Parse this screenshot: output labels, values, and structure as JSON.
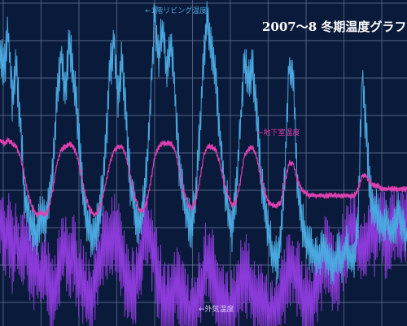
{
  "chart_data": {
    "type": "line",
    "title": "2007～8 冬期温度グラフ",
    "grid": true,
    "xlabel": "",
    "ylabel": "",
    "annotations": [
      {
        "text": "←1階リビング温度",
        "series": "living"
      },
      {
        "text": "←地下室温度",
        "series": "basement"
      },
      {
        "text": "←外気温度",
        "series": "outdoor"
      }
    ],
    "series": [
      {
        "key": "living",
        "color": "#4aa8e0",
        "values": [
          0.86,
          0.78,
          0.9,
          0.7,
          0.8,
          0.62,
          0.4,
          0.34,
          0.3,
          0.28,
          0.35,
          0.32,
          0.38,
          0.48,
          0.7,
          0.84,
          0.72,
          0.86,
          0.78,
          0.64,
          0.46,
          0.34,
          0.3,
          0.26,
          0.32,
          0.4,
          0.56,
          0.78,
          0.88,
          0.7,
          0.82,
          0.64,
          0.44,
          0.36,
          0.3,
          0.34,
          0.48,
          0.7,
          0.96,
          0.82,
          0.92,
          0.76,
          0.88,
          0.72,
          0.5,
          0.4,
          0.34,
          0.3,
          0.38,
          0.58,
          0.8,
          0.96,
          0.84,
          0.74,
          0.6,
          0.44,
          0.36,
          0.3,
          0.4,
          0.6,
          0.82,
          0.74,
          0.8,
          0.66,
          0.48,
          0.38,
          0.28,
          0.22,
          0.2,
          0.26,
          0.48,
          0.8,
          0.76,
          0.46,
          0.32,
          0.28,
          0.24,
          0.22,
          0.2,
          0.24,
          0.22,
          0.2,
          0.18,
          0.22,
          0.2,
          0.24,
          0.22,
          0.2,
          0.34,
          0.78,
          0.58,
          0.4,
          0.36,
          0.34,
          0.3,
          0.32,
          0.28,
          0.3,
          0.36,
          0.3,
          0.26
        ]
      },
      {
        "key": "basement",
        "color": "#e040b0",
        "values": [
          0.57,
          0.56,
          0.57,
          0.56,
          0.55,
          0.52,
          0.46,
          0.4,
          0.36,
          0.34,
          0.35,
          0.34,
          0.36,
          0.42,
          0.5,
          0.54,
          0.55,
          0.56,
          0.55,
          0.52,
          0.46,
          0.4,
          0.36,
          0.34,
          0.35,
          0.38,
          0.44,
          0.5,
          0.54,
          0.55,
          0.55,
          0.52,
          0.46,
          0.4,
          0.36,
          0.35,
          0.38,
          0.44,
          0.52,
          0.55,
          0.56,
          0.56,
          0.56,
          0.54,
          0.48,
          0.42,
          0.38,
          0.36,
          0.38,
          0.44,
          0.52,
          0.55,
          0.55,
          0.54,
          0.5,
          0.44,
          0.4,
          0.37,
          0.38,
          0.44,
          0.52,
          0.54,
          0.55,
          0.52,
          0.46,
          0.41,
          0.38,
          0.37,
          0.37,
          0.38,
          0.44,
          0.5,
          0.5,
          0.45,
          0.42,
          0.41,
          0.4,
          0.4,
          0.4,
          0.4,
          0.4,
          0.4,
          0.4,
          0.4,
          0.4,
          0.4,
          0.4,
          0.4,
          0.42,
          0.46,
          0.46,
          0.44,
          0.43,
          0.43,
          0.42,
          0.42,
          0.42,
          0.42,
          0.42,
          0.42,
          0.42
        ]
      },
      {
        "key": "outdoor",
        "color": "#8a3ad8",
        "values": [
          0.34,
          0.26,
          0.3,
          0.22,
          0.28,
          0.2,
          0.26,
          0.22,
          0.16,
          0.2,
          0.14,
          0.18,
          0.12,
          0.1,
          0.14,
          0.2,
          0.24,
          0.18,
          0.22,
          0.16,
          0.14,
          0.1,
          0.08,
          0.12,
          0.18,
          0.24,
          0.28,
          0.22,
          0.3,
          0.26,
          0.2,
          0.14,
          0.1,
          0.12,
          0.16,
          0.24,
          0.3,
          0.26,
          0.2,
          0.14,
          0.1,
          0.06,
          0.08,
          0.12,
          0.1,
          0.06,
          0.04,
          0.02,
          0.06,
          0.1,
          0.16,
          0.2,
          0.18,
          0.12,
          0.08,
          0.06,
          0.04,
          0.05,
          0.08,
          0.14,
          0.18,
          0.14,
          0.1,
          0.08,
          0.06,
          0.04,
          0.02,
          0.04,
          0.06,
          0.1,
          0.14,
          0.2,
          0.18,
          0.14,
          0.1,
          0.08,
          0.06,
          0.08,
          0.12,
          0.18,
          0.22,
          0.2,
          0.16,
          0.18,
          0.22,
          0.26,
          0.3,
          0.28,
          0.24,
          0.22,
          0.26,
          0.3,
          0.28,
          0.32,
          0.3,
          0.26,
          0.28,
          0.32,
          0.3,
          0.28,
          0.3
        ]
      }
    ]
  }
}
